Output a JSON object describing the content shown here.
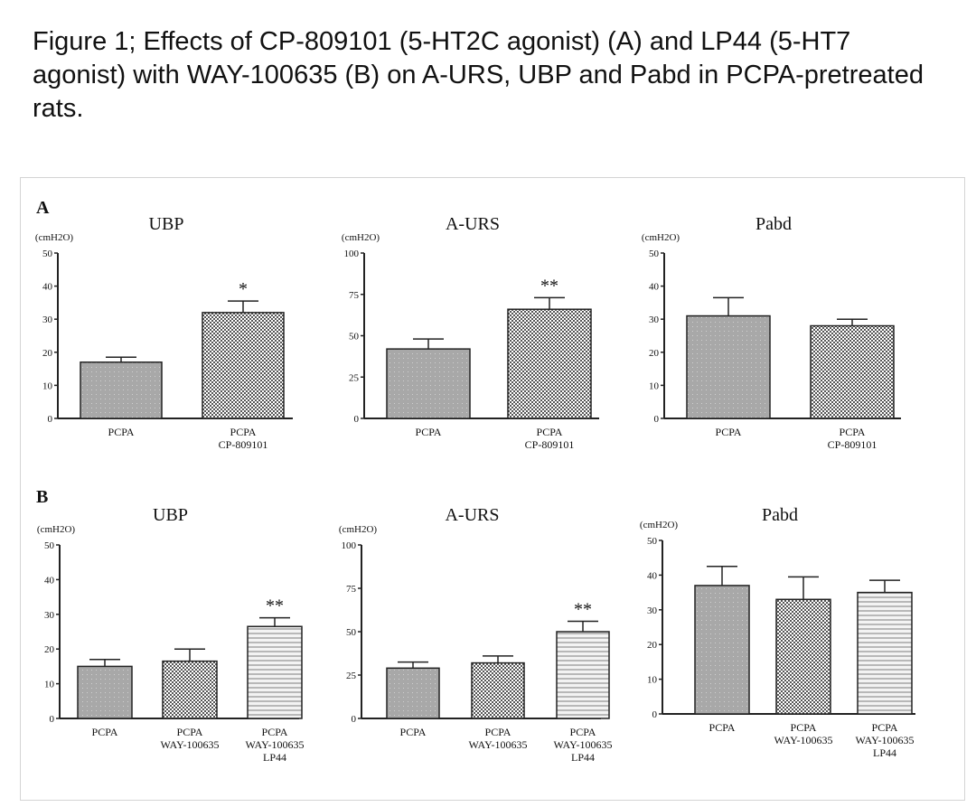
{
  "caption": "Figure 1; Effects of CP-809101 (5-HT2C agonist) (A) and LP44 (5-HT7 agonist) with WAY-100635 (B) on A-URS, UBP and Pabd in PCPA-pretreated rats.",
  "panels": {
    "A": "A",
    "B": "B"
  },
  "colors": {
    "dark_fill": "#a8a8a8",
    "checker_fill": "#8a8a8a",
    "stripe_fill": "#f0f0f0",
    "axis": "#222222"
  },
  "chart_data": [
    {
      "panel": "A",
      "type": "bar",
      "title": "UBP",
      "ylabel": "(cmH2O)",
      "ylim": [
        0,
        50
      ],
      "yticks": [
        "0",
        "10",
        "20",
        "30",
        "40",
        "50"
      ],
      "categories": [
        [
          "PCPA"
        ],
        [
          "PCPA",
          "CP-809101"
        ]
      ],
      "values": [
        17,
        32
      ],
      "errors": [
        1.5,
        3.5
      ],
      "significance": [
        "",
        "*"
      ]
    },
    {
      "panel": "A",
      "type": "bar",
      "title": "A-URS",
      "ylabel": "(cmH2O)",
      "ylim": [
        0,
        100
      ],
      "yticks": [
        "0",
        "25",
        "50",
        "75",
        "100"
      ],
      "categories": [
        [
          "PCPA"
        ],
        [
          "PCPA",
          "CP-809101"
        ]
      ],
      "values": [
        42,
        66
      ],
      "errors": [
        6,
        7
      ],
      "significance": [
        "",
        "**"
      ]
    },
    {
      "panel": "A",
      "type": "bar",
      "title": "Pabd",
      "ylabel": "(cmH2O)",
      "ylim": [
        0,
        50
      ],
      "yticks": [
        "0",
        "10",
        "20",
        "30",
        "40",
        "50"
      ],
      "categories": [
        [
          "PCPA"
        ],
        [
          "PCPA",
          "CP-809101"
        ]
      ],
      "values": [
        31,
        28
      ],
      "errors": [
        5.5,
        2
      ],
      "significance": [
        "",
        ""
      ]
    },
    {
      "panel": "B",
      "type": "bar",
      "title": "UBP",
      "ylabel": "(cmH2O)",
      "ylim": [
        0,
        50
      ],
      "yticks": [
        "0",
        "10",
        "20",
        "30",
        "40",
        "50"
      ],
      "categories": [
        [
          "PCPA"
        ],
        [
          "PCPA",
          "WAY-100635"
        ],
        [
          "PCPA",
          "WAY-100635",
          "LP44"
        ]
      ],
      "values": [
        15,
        16.5,
        26.5
      ],
      "errors": [
        2,
        3.5,
        2.5
      ],
      "significance": [
        "",
        "",
        "**"
      ]
    },
    {
      "panel": "B",
      "type": "bar",
      "title": "A-URS",
      "ylabel": "(cmH2O)",
      "ylim": [
        0,
        100
      ],
      "yticks": [
        "0",
        "25",
        "50",
        "75",
        "100"
      ],
      "categories": [
        [
          "PCPA"
        ],
        [
          "PCPA",
          "WAY-100635"
        ],
        [
          "PCPA",
          "WAY-100635",
          "LP44"
        ]
      ],
      "values": [
        29,
        32,
        50
      ],
      "errors": [
        3.5,
        4,
        6
      ],
      "significance": [
        "",
        "",
        "**"
      ]
    },
    {
      "panel": "B",
      "type": "bar",
      "title": "Pabd",
      "ylabel": "(cmH2O)",
      "ylim": [
        0,
        50
      ],
      "yticks": [
        "0",
        "10",
        "20",
        "30",
        "40",
        "50"
      ],
      "categories": [
        [
          "PCPA"
        ],
        [
          "PCPA",
          "WAY-100635"
        ],
        [
          "PCPA",
          "WAY-100635",
          "LP44"
        ]
      ],
      "values": [
        37,
        33,
        35
      ],
      "errors": [
        5.5,
        6.5,
        3.5
      ],
      "significance": [
        "",
        "",
        ""
      ]
    }
  ]
}
